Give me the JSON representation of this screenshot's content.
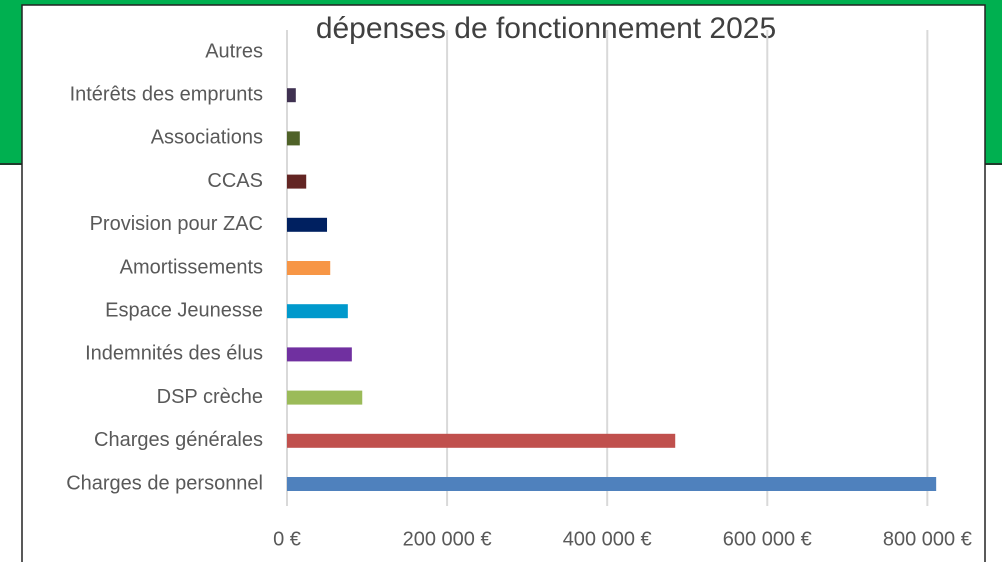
{
  "chart_data": {
    "type": "barh",
    "title": "dépenses de fonctionnement 2025",
    "categories": [
      "Autres",
      "Intérêts des emprunts",
      "Associations",
      "CCAS",
      "Provision pour ZAC",
      "Amortissements",
      "Espace Jeunesse",
      "Indemnités des élus",
      "DSP crèche",
      "Charges générales",
      "Charges de personnel"
    ],
    "values": [
      0,
      11000,
      16000,
      24000,
      50000,
      54000,
      76000,
      81000,
      94000,
      485000,
      811000
    ],
    "colors": [
      "#7f7f7f",
      "#3f3151",
      "#4f6228",
      "#632523",
      "#002060",
      "#f79646",
      "#0099cc",
      "#7030a0",
      "#9bbb59",
      "#c0504d",
      "#4f81bd"
    ],
    "xlim": [
      0,
      872000
    ],
    "xticks": [
      {
        "value": 0,
        "label": "0 €"
      },
      {
        "value": 200000,
        "label": "200 000 €"
      },
      {
        "value": 400000,
        "label": "400 000 €"
      },
      {
        "value": 600000,
        "label": "600 000 €"
      },
      {
        "value": 800000,
        "label": "800 000 €"
      }
    ],
    "grid": true
  }
}
